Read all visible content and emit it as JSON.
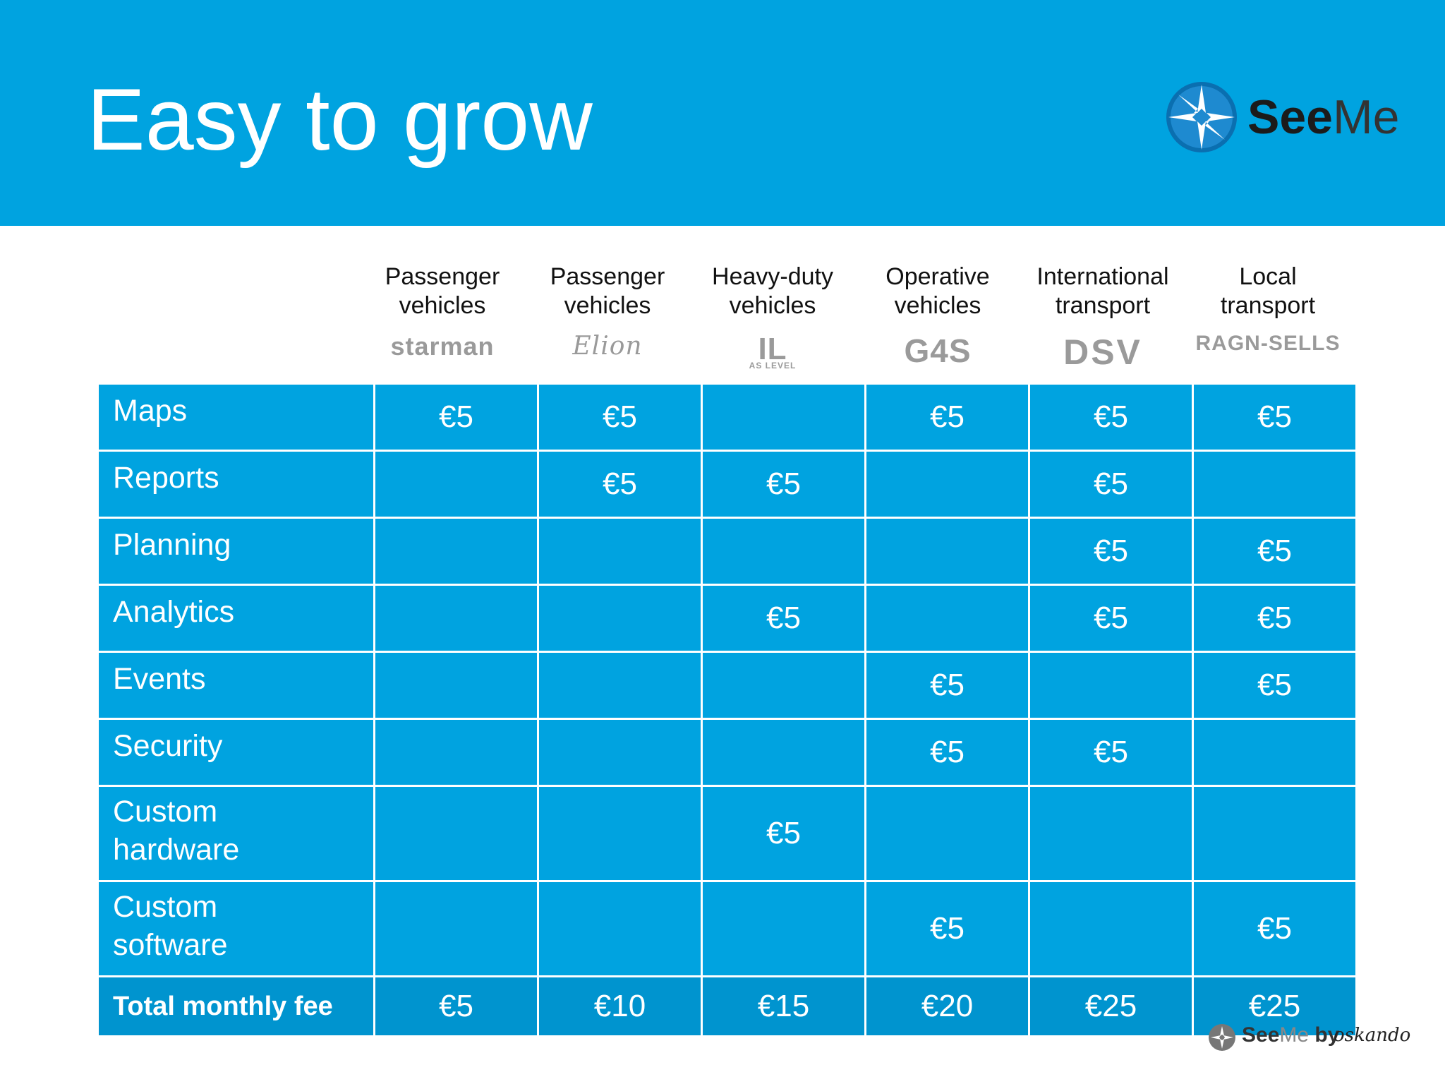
{
  "title": "Easy to grow",
  "brand": {
    "see": "See",
    "me": "Me"
  },
  "columns": [
    {
      "heading": "Passenger vehicles",
      "logo": "starman"
    },
    {
      "heading": "Passenger vehicles",
      "logo": "Elion"
    },
    {
      "heading": "Heavy-duty vehicles",
      "logo": "IL",
      "logo_sub": "AS LEVEL"
    },
    {
      "heading": "Operative vehicles",
      "logo": "G4S"
    },
    {
      "heading": "International transport",
      "logo": "DSV"
    },
    {
      "heading": "Local transport",
      "logo": "RAGN-SELLS"
    }
  ],
  "rows": [
    {
      "label": "Maps",
      "cells": [
        "€5",
        "€5",
        "",
        "€5",
        "€5",
        "€5"
      ]
    },
    {
      "label": "Reports",
      "cells": [
        "",
        "€5",
        "€5",
        "",
        "€5",
        ""
      ]
    },
    {
      "label": "Planning",
      "cells": [
        "",
        "",
        "",
        "",
        "€5",
        "€5"
      ]
    },
    {
      "label": "Analytics",
      "cells": [
        "",
        "",
        "€5",
        "",
        "€5",
        "€5"
      ]
    },
    {
      "label": "Events",
      "cells": [
        "",
        "",
        "",
        "€5",
        "",
        "€5"
      ]
    },
    {
      "label": "Security",
      "cells": [
        "",
        "",
        "",
        "€5",
        "€5",
        ""
      ]
    },
    {
      "label": "Custom hardware",
      "cells": [
        "",
        "",
        "€5",
        "",
        "",
        ""
      ]
    },
    {
      "label": "Custom software",
      "cells": [
        "",
        "",
        "",
        "€5",
        "",
        "€5"
      ]
    }
  ],
  "total": {
    "label": "Total monthly fee",
    "cells": [
      "€5",
      "€10",
      "€15",
      "€20",
      "€25",
      "€25"
    ]
  },
  "footer": {
    "see": "See",
    "me": "Me",
    "by": "by",
    "company": "oskando"
  },
  "colors": {
    "header_bg": "#00a3e0",
    "cell_bg": "#00a3e0",
    "total_bg": "#0094cf"
  }
}
